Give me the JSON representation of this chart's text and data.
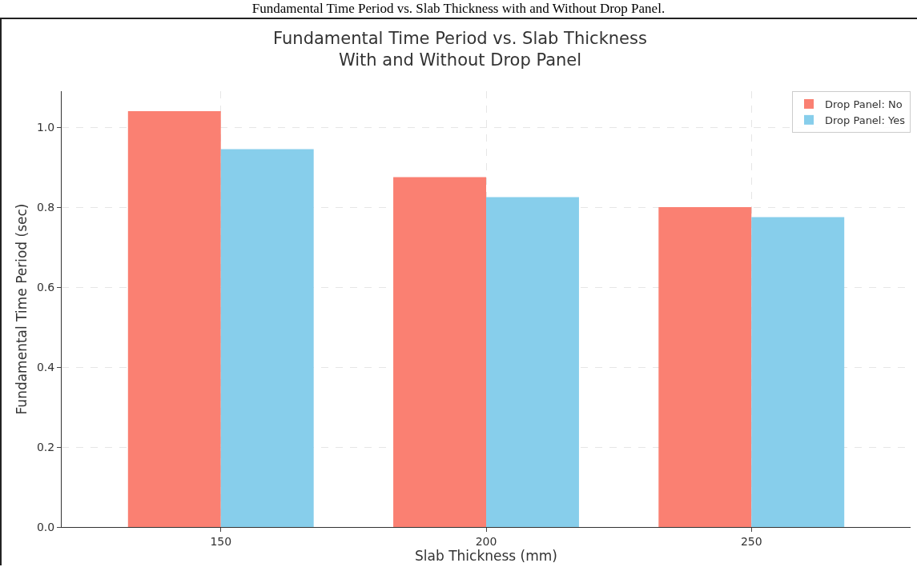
{
  "chart_data": {
    "type": "bar",
    "title": "Fundamental Time Period vs. Slab Thickness\nWith and Without Drop Panel",
    "annotations": [
      "Fundamental Time Period vs. Slab Thickness with and Without Drop Panel."
    ],
    "xlabel": "Slab Thickness (mm)",
    "ylabel": "Fundamental Time Period (sec)",
    "categories": [
      "150",
      "200",
      "250"
    ],
    "series": [
      {
        "name": "Drop Panel: No",
        "color": "#fa8072",
        "values": [
          1.04,
          0.875,
          0.8
        ]
      },
      {
        "name": "Drop Panel: Yes",
        "color": "#87ceeb",
        "values": [
          0.945,
          0.825,
          0.775
        ]
      }
    ],
    "ylim": [
      0,
      1.09
    ],
    "yticks": [
      {
        "value": 0,
        "label": "0.0"
      },
      0.2,
      0.4,
      0.6,
      0.8,
      {
        "value": 1,
        "label": "1.0"
      }
    ],
    "grid": true,
    "legend": "top right"
  }
}
